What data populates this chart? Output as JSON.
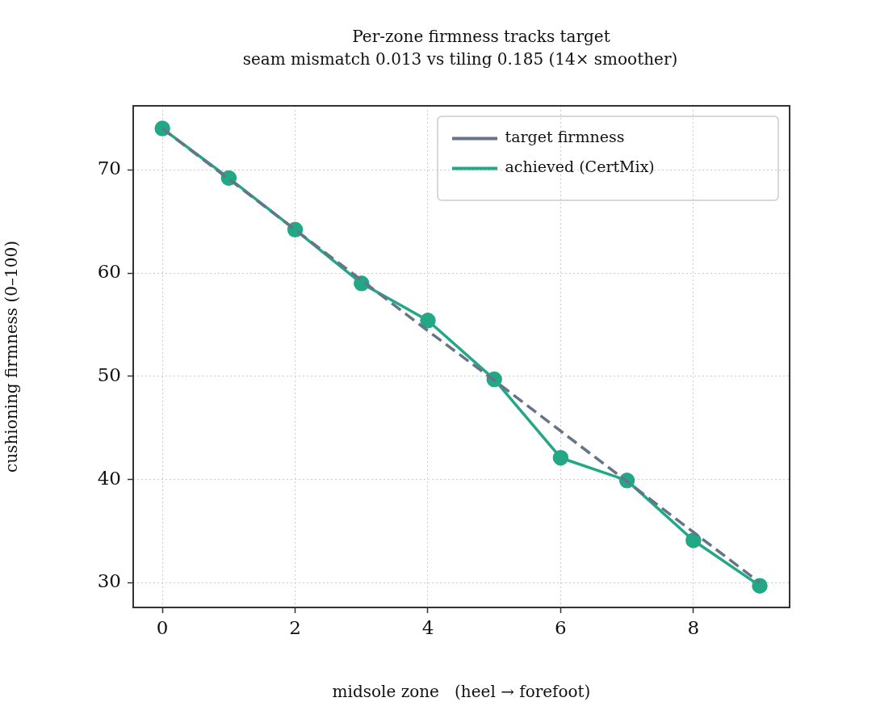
{
  "chart_data": {
    "type": "line",
    "title": "Per-zone firmness tracks target",
    "subtitle": "seam mismatch 0.013 vs tiling 0.185 (14× smoother)",
    "xlabel": "midsole zone   (heel → forefoot)",
    "ylabel": "cushioning firmness (0–100)",
    "x": [
      0,
      1,
      2,
      3,
      4,
      5,
      6,
      7,
      8,
      9
    ],
    "series": [
      {
        "name": "target firmness",
        "color": "#667389",
        "line_style": "dashed",
        "marker": "none",
        "values": [
          74,
          69.1,
          64.2,
          59.3,
          54.4,
          49.6,
          44.7,
          39.8,
          34.9,
          30.0
        ]
      },
      {
        "name": "achieved (CertMix)",
        "color": "#22a884",
        "line_style": "solid",
        "marker": "circle",
        "values": [
          74,
          69.2,
          64.2,
          59,
          55.4,
          49.7,
          42.1,
          39.9,
          34.1,
          29.7
        ]
      }
    ],
    "xlim": [
      -0.44,
      9.45
    ],
    "xticks": [
      0,
      2,
      4,
      6,
      8
    ],
    "ylim": [
      27.6,
      76.2
    ],
    "yticks": [
      30,
      40,
      50,
      60,
      70
    ],
    "grid": true,
    "legend": "top right"
  }
}
